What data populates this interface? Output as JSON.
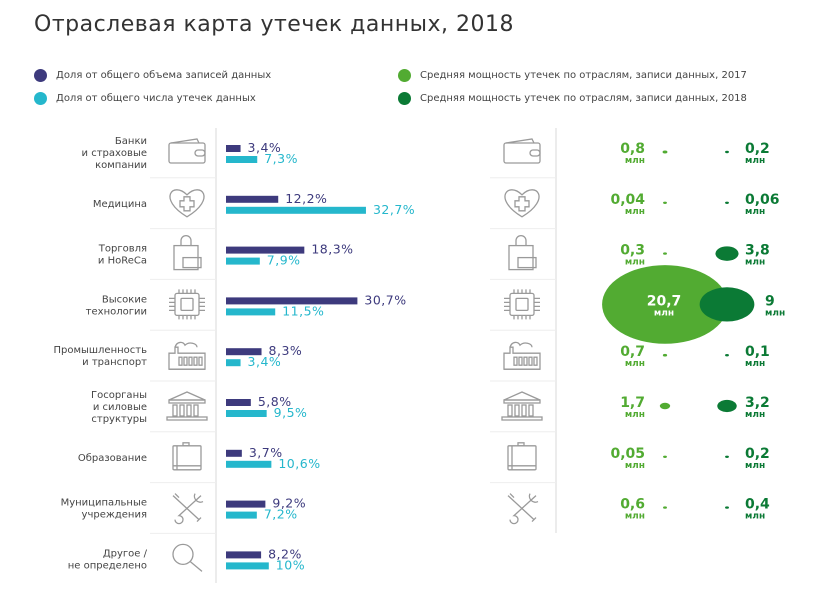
{
  "title": "Отраслевая карта утечек данных, 2018",
  "legend": [
    {
      "label": "Доля от общего объема записей данных",
      "color": "#3d3a7d"
    },
    {
      "label": "Доля от общего числа утечек данных",
      "color": "#25b7cc"
    },
    {
      "label": "Средняя мощность утечек по отраслям, записи данных, 2017",
      "color": "#52ab32"
    },
    {
      "label": "Средняя мощность утечек по отраслям, записи данных, 2018",
      "color": "#0b7a35"
    }
  ],
  "unit": "млн",
  "chart_data": {
    "type": "bar",
    "categories": [
      {
        "lines": [
          "Банки",
          "и страховые",
          "компании"
        ],
        "icon": "wallet-icon"
      },
      {
        "lines": [
          "Медицина"
        ],
        "icon": "heart-cross-icon"
      },
      {
        "lines": [
          "Торговля",
          "и HoReCa"
        ],
        "icon": "shopping-bag-icon"
      },
      {
        "lines": [
          "Высокие",
          "технологии"
        ],
        "icon": "chip-icon"
      },
      {
        "lines": [
          "Промышленность",
          "и транспорт"
        ],
        "icon": "factory-icon"
      },
      {
        "lines": [
          "Госорганы",
          "и силовые",
          "структуры"
        ],
        "icon": "government-building-icon"
      },
      {
        "lines": [
          "Образование"
        ],
        "icon": "book-icon"
      },
      {
        "lines": [
          "Муниципальные",
          "учреждения"
        ],
        "icon": "tools-icon"
      },
      {
        "lines": [
          "Другое /",
          "не определено"
        ],
        "icon": "magnifier-icon"
      }
    ],
    "series": [
      {
        "name": "Доля от общего объема записей данных",
        "values": [
          3.4,
          12.2,
          18.3,
          30.7,
          8.3,
          5.8,
          3.7,
          9.2,
          8.2
        ],
        "labels": [
          "3,4%",
          "12,2%",
          "18,3%",
          "30,7%",
          "8,3%",
          "5,8%",
          "3,7%",
          "9,2%",
          "8,2%"
        ]
      },
      {
        "name": "Доля от общего числа утечек данных",
        "values": [
          7.3,
          32.7,
          7.9,
          11.5,
          3.4,
          9.5,
          10.6,
          7.2,
          10
        ],
        "labels": [
          "7,3%",
          "32,7%",
          "7,9%",
          "11,5%",
          "3,4%",
          "9,5%",
          "10,6%",
          "7,2%",
          "10%"
        ]
      }
    ],
    "bubbles": [
      {
        "name": "Средняя мощность утечек по отраслям, записи данных, 2017",
        "values": [
          0.8,
          0.04,
          0.3,
          20.7,
          0.7,
          1.7,
          0.05,
          0.6
        ],
        "labels": [
          "0,8",
          "0,04",
          "0,3",
          "20,7",
          "0,7",
          "1,7",
          "0,05",
          "0,6"
        ]
      },
      {
        "name": "Средняя мощность утечек по отраслям, записи данных, 2018",
        "values": [
          0.2,
          0.06,
          3.8,
          9,
          0.1,
          3.2,
          0.2,
          0.4
        ],
        "labels": [
          "0,2",
          "0,06",
          "3,8",
          "9",
          "0,1",
          "3,2",
          "0,2",
          "0,4"
        ]
      }
    ],
    "unit_bars": "%",
    "unit_bubbles": "млн записей"
  }
}
